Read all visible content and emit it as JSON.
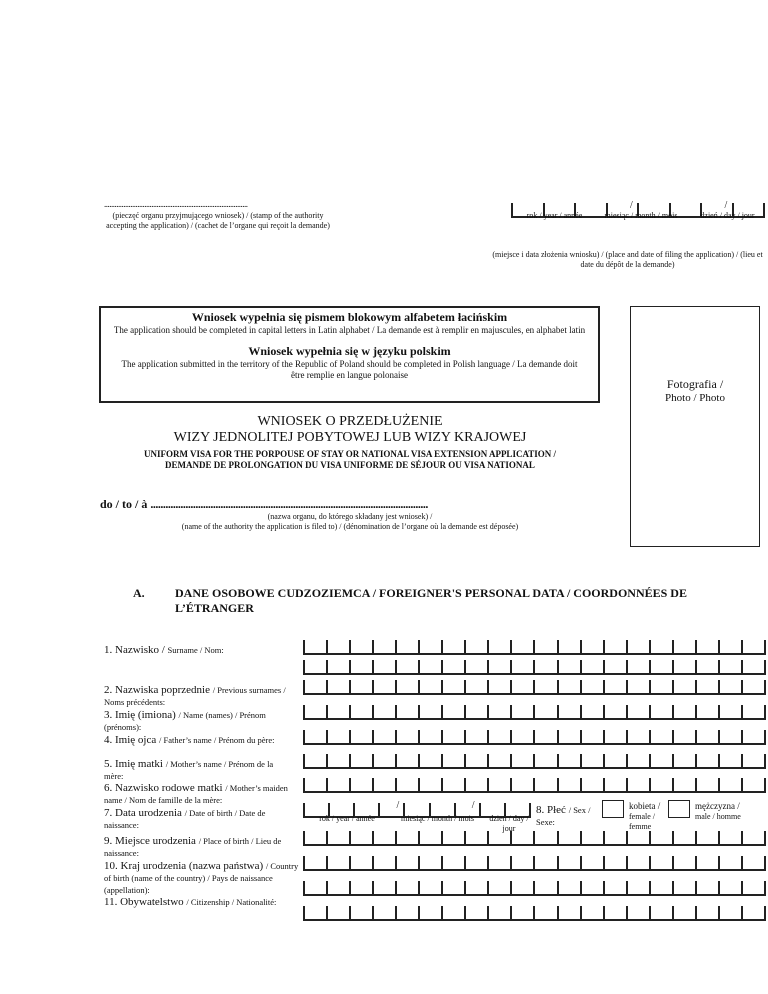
{
  "header": {
    "stamp_dots": "..................................................................................",
    "stamp_caption": "(pieczęć organu przyjmującego wniosek) / (stamp of the authority accepting the application) / (cachet de l’organe qui reçoit la demande)",
    "date_labels": {
      "year": "rok / year / année",
      "month": "miesiąc / month / mois",
      "day": "dzień / day / jour"
    },
    "date_separator": "/",
    "place_date_caption": "(miejsce i data złożenia wniosku) / (place and  date of filing the application) /  (lieu et date du dépôt de la demande)"
  },
  "notice": {
    "title1": "Wniosek wypełnia się pismem blokowym alfabetem łacińskim",
    "text1": "The application should be completed in capital letters in Latin alphabet / La demande est à remplir en majuscules, en alphabet latin",
    "title2": "Wniosek wypełnia się w języku polskim",
    "text2": "The application submitted in the territory of the Republic of Poland should be completed in Polish language / La demande doit être remplie en langue polonaise"
  },
  "photo": {
    "label1": "Fotografia /",
    "label2": "Photo / Photo"
  },
  "title": {
    "line1": "WNIOSEK O PRZEDŁUŻENIE",
    "line2": "WIZY JEDNOLITEJ POBYTOWEJ LUB WIZY KRAJOWEJ",
    "sub1": "UNIFORM VISA FOR THE PORPOUSE OF STAY OR NATIONAL VISA EXTENSION APPLICATION /",
    "sub2": "DEMANDE DE PROLONGATION DU VISA UNIFORME DE SÉJOUR OU VISA NATIONAL"
  },
  "to": {
    "label": "do / to / à",
    "dots": "...............................................................................................................",
    "caption1": "(nazwa organu, do którego składany jest wniosek) /",
    "caption2": "(name of the authority the application is filed to) / (dénomination de l’organe où la demande est déposée)"
  },
  "section_a": {
    "letter": "A.",
    "title": "DANE OSOBOWE CUDZOZIEMCA / FOREIGNER'S PERSONAL DATA / COORDONNÉES DE L’ÉTRANGER"
  },
  "fields": [
    {
      "main": "1. Nazwisko /",
      "sub": "Surname / Nom:"
    },
    {
      "main": "2. Nazwiska poprzednie",
      "sub": "/ Previous surnames / Noms précédents:"
    },
    {
      "main": "3. Imię (imiona)",
      "sub": "/ Name (names) / Prénom (prénoms):"
    },
    {
      "main": "4. Imię ojca",
      "sub": "/ Father’s name / Prénom du père:"
    },
    {
      "main": "5. Imię matki",
      "sub": "/ Mother’s name / Prénom de la mère:"
    },
    {
      "main": "6. Nazwisko rodowe matki",
      "sub": "/ Mother’s maiden name / Nom de famille de la mère:"
    },
    {
      "main": "7. Data urodzenia",
      "sub": "/ Date of birth / Date de naissance:"
    },
    {
      "main": "9. Miejsce urodzenia",
      "sub": "/ Place of birth / Lieu de naissance:"
    },
    {
      "main": "10. Kraj urodzenia (nazwa państwa)",
      "sub": "/ Country of  birth  (name of the country) / Pays de naissance (appellation):"
    },
    {
      "main": "11. Obywatelstwo",
      "sub": "/ Citizenship / Nationalité:"
    }
  ],
  "birth_date_labels": {
    "year": "rok / year / année",
    "month": "miesiąc / month / mois",
    "day": "dzień / day / jour"
  },
  "sex": {
    "main": "8. Płeć",
    "sub": "/ Sex / Sexe:",
    "female_main": "kobieta /",
    "female_sub": "female / femme",
    "male_main": "mężczyzna /",
    "male_sub": "male / homme"
  }
}
